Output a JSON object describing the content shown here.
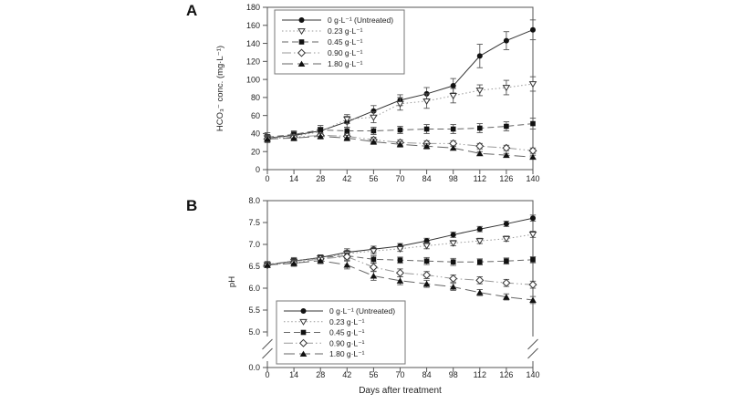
{
  "figure": {
    "panel_a_label": "A",
    "panel_b_label": "B",
    "background": "#ffffff",
    "palette": "grayscale"
  },
  "chart_data": [
    {
      "type": "line",
      "panel": "A",
      "title": "",
      "xlabel": "",
      "ylabel": "HCO₃⁻ conc. (mg·L⁻¹)",
      "x": [
        0,
        14,
        28,
        42,
        56,
        70,
        84,
        98,
        112,
        126,
        140
      ],
      "xlim": [
        0,
        140
      ],
      "ylim": [
        0,
        180
      ],
      "yticks": [
        0,
        20,
        40,
        60,
        80,
        100,
        120,
        140,
        160,
        180
      ],
      "grid": false,
      "error_bars": true,
      "legend_position": "top-left",
      "series": [
        {
          "name": "0 g·L⁻¹ (Untreated)",
          "marker": "filled-circle",
          "line_style": "solid",
          "values": [
            35,
            38,
            43,
            53,
            65,
            77,
            84,
            93,
            126,
            143,
            155
          ],
          "errors": [
            4,
            4,
            4,
            6,
            6,
            6,
            7,
            8,
            13,
            10,
            11
          ]
        },
        {
          "name": "0.23 g·L⁻¹",
          "marker": "open-triangle-down",
          "line_style": "dotted",
          "values": [
            35,
            37,
            42,
            56,
            58,
            73,
            76,
            82,
            88,
            91,
            95
          ],
          "errors": [
            4,
            4,
            4,
            5,
            6,
            7,
            8,
            8,
            6,
            8,
            8
          ]
        },
        {
          "name": "0.45 g·L⁻¹",
          "marker": "filled-square",
          "line_style": "dashed",
          "values": [
            36,
            39,
            44,
            43,
            43,
            44,
            45,
            45,
            46,
            48,
            51
          ],
          "errors": [
            5,
            4,
            5,
            4,
            4,
            4,
            5,
            5,
            5,
            5,
            6
          ]
        },
        {
          "name": "0.90 g·L⁻¹",
          "marker": "open-diamond",
          "line_style": "dash-dot-dot",
          "values": [
            34,
            36,
            38,
            37,
            33,
            30,
            29,
            29,
            26,
            24,
            21
          ],
          "errors": [
            4,
            3,
            3,
            3,
            3,
            3,
            3,
            3,
            3,
            3,
            3
          ]
        },
        {
          "name": "1.80 g·L⁻¹",
          "marker": "filled-triangle",
          "line_style": "long-dash",
          "values": [
            34,
            35,
            37,
            35,
            31,
            28,
            26,
            24,
            18,
            16,
            14
          ],
          "errors": [
            3,
            3,
            3,
            3,
            3,
            3,
            3,
            2,
            2,
            2,
            2
          ]
        }
      ]
    },
    {
      "type": "line",
      "panel": "B",
      "title": "",
      "xlabel": "Days after treatment",
      "ylabel": "pH",
      "x": [
        0,
        14,
        28,
        42,
        56,
        70,
        84,
        98,
        112,
        126,
        140
      ],
      "xlim": [
        0,
        140
      ],
      "ylim": [
        5.0,
        8.0
      ],
      "yticks": [
        "8.0",
        "7.5",
        "7.0",
        "6.5",
        "6.0",
        "5.5",
        "5.0"
      ],
      "axis_break": true,
      "ytick_below_break": "0.0",
      "grid": false,
      "error_bars": true,
      "legend_position": "bottom-left",
      "series": [
        {
          "name": "0 g·L⁻¹ (Untreated)",
          "marker": "filled-circle",
          "line_style": "solid",
          "values": [
            6.53,
            6.62,
            6.7,
            6.82,
            6.89,
            6.96,
            7.08,
            7.22,
            7.35,
            7.47,
            7.6
          ],
          "errors": [
            0.06,
            0.06,
            0.06,
            0.08,
            0.07,
            0.06,
            0.06,
            0.06,
            0.06,
            0.06,
            0.07
          ]
        },
        {
          "name": "0.23 g·L⁻¹",
          "marker": "open-triangle-down",
          "line_style": "dotted",
          "values": [
            6.53,
            6.61,
            6.69,
            6.79,
            6.85,
            6.9,
            6.97,
            7.03,
            7.08,
            7.13,
            7.23
          ],
          "errors": [
            0.06,
            0.06,
            0.06,
            0.07,
            0.07,
            0.06,
            0.07,
            0.06,
            0.06,
            0.06,
            0.07
          ]
        },
        {
          "name": "0.45 g·L⁻¹",
          "marker": "filled-square",
          "line_style": "dashed",
          "values": [
            6.54,
            6.62,
            6.7,
            6.74,
            6.66,
            6.64,
            6.62,
            6.6,
            6.6,
            6.62,
            6.65
          ],
          "errors": [
            0.07,
            0.08,
            0.06,
            0.07,
            0.08,
            0.07,
            0.08,
            0.08,
            0.07,
            0.07,
            0.07
          ]
        },
        {
          "name": "0.90 g·L⁻¹",
          "marker": "open-diamond",
          "line_style": "dash-dot-dot",
          "values": [
            6.53,
            6.58,
            6.67,
            6.72,
            6.48,
            6.35,
            6.3,
            6.22,
            6.18,
            6.12,
            6.08
          ],
          "errors": [
            0.06,
            0.07,
            0.06,
            0.08,
            0.09,
            0.09,
            0.08,
            0.08,
            0.08,
            0.08,
            0.08
          ]
        },
        {
          "name": "1.80 g·L⁻¹",
          "marker": "filled-triangle",
          "line_style": "long-dash",
          "values": [
            6.53,
            6.57,
            6.63,
            6.53,
            6.28,
            6.17,
            6.1,
            6.03,
            5.9,
            5.8,
            5.73
          ],
          "errors": [
            0.06,
            0.07,
            0.07,
            0.09,
            0.1,
            0.09,
            0.08,
            0.08,
            0.07,
            0.07,
            0.08
          ]
        }
      ]
    }
  ]
}
